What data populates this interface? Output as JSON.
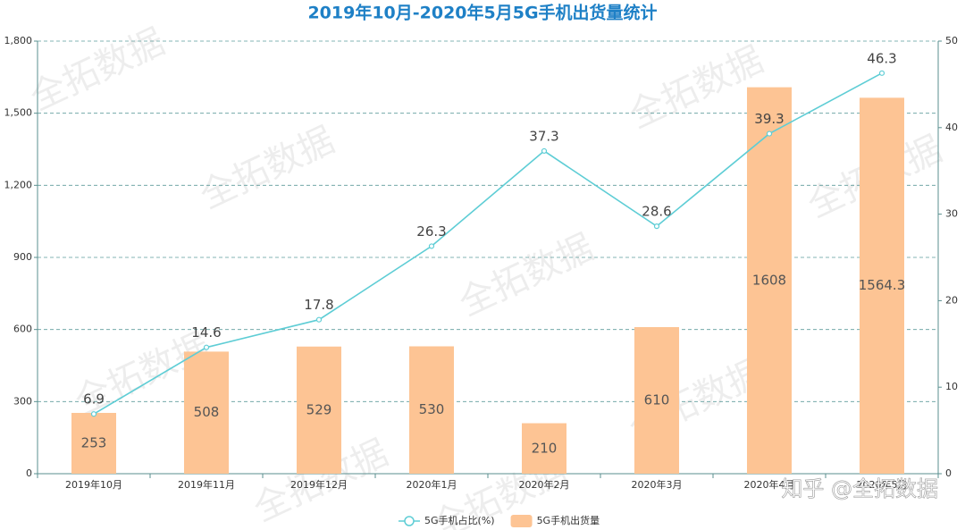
{
  "chart_data": {
    "type": "bar",
    "title": "2019年10月-2020年5月5G手机出货量统计",
    "categories": [
      "2019年10月",
      "2019年11月",
      "2019年12月",
      "2020年1月",
      "2020年2月",
      "2020年3月",
      "2020年4月",
      "2020年5月"
    ],
    "series": [
      {
        "name": "5G手机占比(%)",
        "type": "line",
        "axis": "y2",
        "color": "#5ecdd5",
        "values": [
          6.9,
          14.6,
          17.8,
          26.3,
          37.3,
          28.6,
          39.3,
          46.3
        ]
      },
      {
        "name": "5G手机出货量",
        "type": "bar",
        "color": "#fdc494",
        "values": [
          253,
          508,
          529,
          530,
          210,
          610,
          1608,
          1564.3
        ]
      }
    ],
    "ylim": [
      0,
      1800
    ],
    "yticks": [
      0,
      300,
      600,
      900,
      {
        "value": 1200,
        "label": "1,200"
      },
      {
        "value": 1500,
        "label": "1,500"
      },
      {
        "value": 1800,
        "label": "1,800"
      }
    ],
    "y2lim": [
      0,
      50
    ],
    "y2ticks": [
      0,
      10,
      20,
      30,
      40,
      50
    ],
    "grid": true,
    "legend": "bottom",
    "watermark": "全拓数据",
    "credit": "知乎 @全拓数据"
  }
}
